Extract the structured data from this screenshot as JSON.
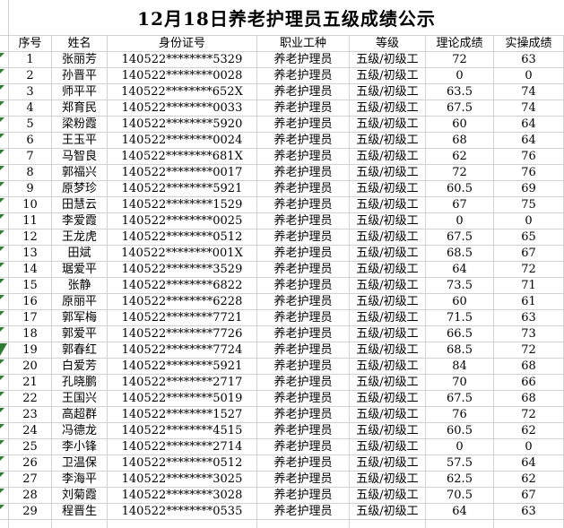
{
  "title": "12月18日养老护理员五级成绩公示",
  "table": {
    "headers": [
      "序号",
      "姓名",
      "身份证号",
      "职业工种",
      "等级",
      "理论成绩",
      "实操成绩"
    ],
    "rows": [
      [
        "1",
        "张丽芳",
        "140522********5329",
        "养老护理员",
        "五级/初级工",
        "72",
        "63"
      ],
      [
        "2",
        "孙晋平",
        "140522********0028",
        "养老护理员",
        "五级/初级工",
        "0",
        "0"
      ],
      [
        "3",
        "师平平",
        "140522********652X",
        "养老护理员",
        "五级/初级工",
        "63.5",
        "74"
      ],
      [
        "4",
        "郑育民",
        "140522********0033",
        "养老护理员",
        "五级/初级工",
        "67.5",
        "74"
      ],
      [
        "5",
        "梁粉霞",
        "140522********5920",
        "养老护理员",
        "五级/初级工",
        "60",
        "64"
      ],
      [
        "6",
        "王玉平",
        "140522********0024",
        "养老护理员",
        "五级/初级工",
        "68",
        "64"
      ],
      [
        "7",
        "马智良",
        "140522********681X",
        "养老护理员",
        "五级/初级工",
        "62",
        "76"
      ],
      [
        "8",
        "郭福兴",
        "140522********0017",
        "养老护理员",
        "五级/初级工",
        "72",
        "76"
      ],
      [
        "9",
        "原梦珍",
        "140522********5921",
        "养老护理员",
        "五级/初级工",
        "60.5",
        "69"
      ],
      [
        "10",
        "田慧云",
        "140522********1529",
        "养老护理员",
        "五级/初级工",
        "67",
        "75"
      ],
      [
        "11",
        "李爱霞",
        "140522********0025",
        "养老护理员",
        "五级/初级工",
        "0",
        "0"
      ],
      [
        "12",
        "王龙虎",
        "140522********0512",
        "养老护理员",
        "五级/初级工",
        "67.5",
        "65"
      ],
      [
        "13",
        "田斌",
        "140522********001X",
        "养老护理员",
        "五级/初级工",
        "68.5",
        "67"
      ],
      [
        "14",
        "琚爱平",
        "140522********3529",
        "养老护理员",
        "五级/初级工",
        "64",
        "72"
      ],
      [
        "15",
        "张静",
        "140522********6822",
        "养老护理员",
        "五级/初级工",
        "73.5",
        "71"
      ],
      [
        "16",
        "原丽平",
        "140522********6228",
        "养老护理员",
        "五级/初级工",
        "60",
        "61"
      ],
      [
        "17",
        "郭军梅",
        "140522********7721",
        "养老护理员",
        "五级/初级工",
        "71.5",
        "63"
      ],
      [
        "18",
        "郭爱平",
        "140522********7726",
        "养老护理员",
        "五级/初级工",
        "66.5",
        "73"
      ],
      [
        "19",
        "郭春红",
        "140522********7724",
        "养老护理员",
        "五级/初级工",
        "68.5",
        "72"
      ],
      [
        "20",
        "白爱芳",
        "140522********5921",
        "养老护理员",
        "五级/初级工",
        "84",
        "68"
      ],
      [
        "21",
        "孔晓鹏",
        "140522********2717",
        "养老护理员",
        "五级/初级工",
        "70",
        "66"
      ],
      [
        "22",
        "王国兴",
        "140522********5019",
        "养老护理员",
        "五级/初级工",
        "67.5",
        "68"
      ],
      [
        "23",
        "高超群",
        "140522********1527",
        "养老护理员",
        "五级/初级工",
        "76",
        "72"
      ],
      [
        "24",
        "冯德龙",
        "140522********4515",
        "养老护理员",
        "五级/初级工",
        "60.5",
        "62"
      ],
      [
        "25",
        "李小锋",
        "140522********2714",
        "养老护理员",
        "五级/初级工",
        "0",
        "0"
      ],
      [
        "26",
        "卫温保",
        "140522********0512",
        "养老护理员",
        "五级/初级工",
        "57.5",
        "64"
      ],
      [
        "27",
        "李海平",
        "140522********3025",
        "养老护理员",
        "五级/初级工",
        "62.5",
        "62"
      ],
      [
        "28",
        "刘菊霞",
        "140522********3028",
        "养老护理员",
        "五级/初级工",
        "70.5",
        "67"
      ],
      [
        "29",
        "程晋生",
        "140522********0535",
        "养老护理员",
        "五级/初级工",
        "64",
        "63"
      ]
    ]
  },
  "markers": {
    "icon": "green-error-indicator-triangle",
    "rows_with_triangle": "1-29",
    "big_marker_row": 19
  },
  "colors": {
    "gridline": "#d2d2d2",
    "marker_green": "#2e7d32",
    "text": "#000000",
    "background": "#ffffff"
  }
}
